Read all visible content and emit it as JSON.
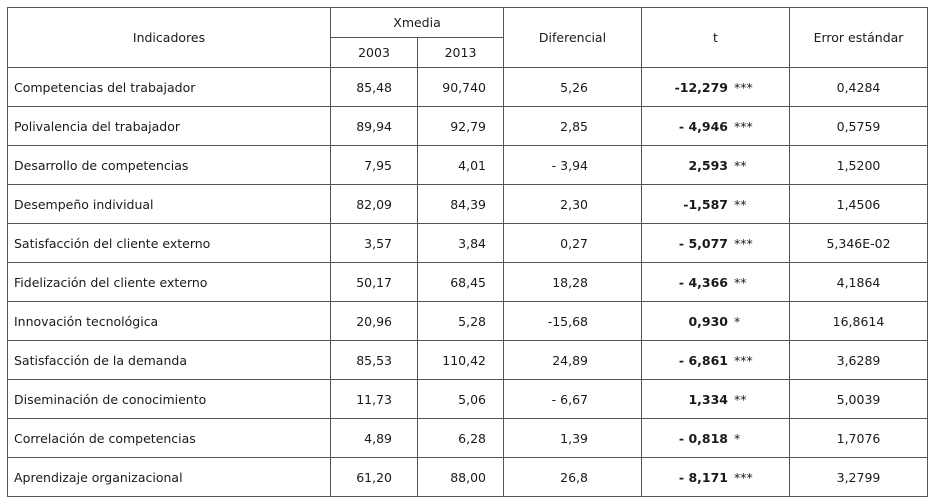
{
  "table": {
    "header": {
      "indicadores": "Indicadores",
      "xmedia": "Xmedia",
      "years": [
        "2003",
        "2013"
      ],
      "diferencial": "Diferencial",
      "t": "t",
      "error": "Error estándar"
    },
    "rows": [
      [
        "Competencias del trabajador",
        "85,48",
        "90,740",
        "5,26",
        "-12,279",
        "***",
        "0,4284"
      ],
      [
        "Polivalencia del trabajador",
        "89,94",
        "92,79",
        "2,85",
        "- 4,946",
        "***",
        "0,5759"
      ],
      [
        "Desarrollo de competencias",
        "7,95",
        "4,01",
        "- 3,94",
        "2,593",
        "**",
        "1,5200"
      ],
      [
        "Desempeño individual",
        "82,09",
        "84,39",
        "2,30",
        "-1,587",
        "**",
        "1,4506"
      ],
      [
        "Satisfacción del cliente externo",
        "3,57",
        "3,84",
        "0,27",
        "- 5,077",
        "***",
        "5,346E-02"
      ],
      [
        "Fidelización del cliente externo",
        "50,17",
        "68,45",
        "18,28",
        "- 4,366",
        "**",
        "4,1864"
      ],
      [
        "Innovación tecnológica",
        "20,96",
        "5,28",
        "-15,68",
        "0,930",
        "*",
        "16,8614"
      ],
      [
        "Satisfacción de la demanda",
        "85,53",
        "110,42",
        "24,89",
        "- 6,861",
        "***",
        "3,6289"
      ],
      [
        "Diseminación de conocimiento",
        "11,73",
        "5,06",
        "- 6,67",
        "1,334",
        "**",
        "5,0039"
      ],
      [
        "Correlación de competencias",
        "4,89",
        "6,28",
        "1,39",
        "- 0,818",
        "*",
        "1,7076"
      ],
      [
        "Aprendizaje organizacional",
        "61,20",
        "88,00",
        "26,8",
        "- 8,171",
        "***",
        "3,2799"
      ]
    ]
  }
}
